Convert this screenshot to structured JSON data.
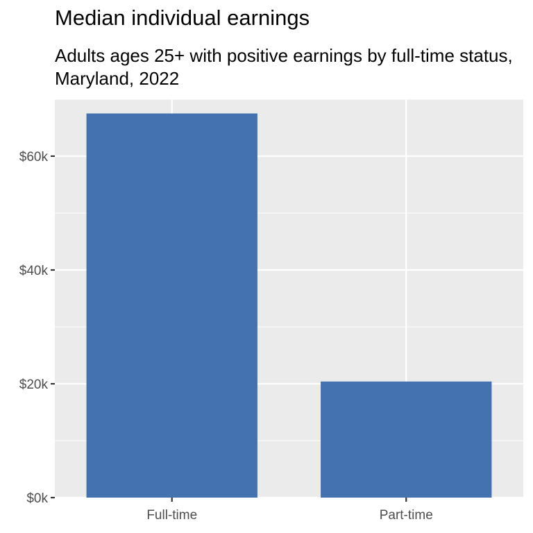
{
  "chart_data": {
    "type": "bar",
    "title": "Median individual earnings",
    "subtitle": "Adults ages 25+ with positive earnings by full-time status, Maryland, 2022",
    "categories": [
      "Full-time",
      "Part-time"
    ],
    "values": [
      67500,
      20400
    ],
    "ylim": [
      0,
      70000
    ],
    "y_ticks": [
      {
        "value": 0,
        "label": "$0k"
      },
      {
        "value": 20000,
        "label": "$20k"
      },
      {
        "value": 40000,
        "label": "$40k"
      },
      {
        "value": 60000,
        "label": "$60k"
      }
    ],
    "y_minor_ticks": [
      10000,
      30000,
      50000,
      70000
    ],
    "grid": true,
    "bar_color": "#4472b0",
    "panel_color": "#ebebeb",
    "grid_color": "#ffffff"
  }
}
